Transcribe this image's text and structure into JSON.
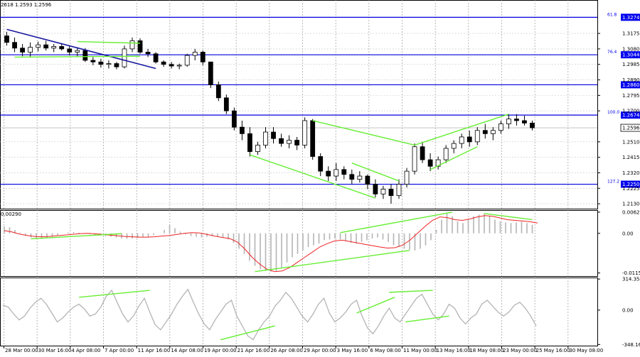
{
  "chart_data": {
    "type": "candlestick",
    "header_text": "2618 1.2593 1.2596",
    "price_ticks": [
      "1.3175",
      "1.3080",
      "1.2985",
      "1.2890",
      "1.2795",
      "1.2700",
      "1.2510",
      "1.2415",
      "1.2320",
      "1.2225",
      "1.2130"
    ],
    "price_range": [
      1.21,
      1.338
    ],
    "levels": [
      {
        "price": 1.3274,
        "label": "1.3274",
        "fib": "61.8"
      },
      {
        "price": 1.3044,
        "label": "1.3044",
        "fib": "76.4"
      },
      {
        "price": 1.286,
        "label": "1.2860",
        "fib": ""
      },
      {
        "price": 1.2674,
        "label": "1.2674",
        "fib": "100.0"
      },
      {
        "price": 1.225,
        "label": "1.2250",
        "fib": "127.2"
      }
    ],
    "current_price": {
      "price": 1.2596,
      "label": "1.2596"
    },
    "macd": {
      "label_left": "0.00290",
      "ticks": [
        "0.0062",
        "0.00",
        "-0.01158"
      ],
      "range": [
        -0.0125,
        0.0068
      ]
    },
    "cci": {
      "ticks": [
        "314.3545",
        "0.00",
        "-348.168"
      ],
      "range": [
        -360,
        330
      ]
    },
    "time_labels": [
      "28 Mar 00:00",
      "30 Mar 16:00",
      "4 Apr 08:00",
      "7 Apr 00:00",
      "11 Apr 16:00",
      "14 Apr 08:00",
      "19 Apr 00:00",
      "21 Apr 16:00",
      "26 Apr 08:00",
      "29 Apr 00:00",
      "3 May 16:00",
      "6 May 08:00",
      "11 May 00:00",
      "13 May 16:00",
      "18 May 08:00",
      "23 May 00:00",
      "25 May 16:00",
      "30 May 08:00"
    ],
    "candles": [
      [
        1.316,
        1.3185,
        1.31,
        1.312
      ],
      [
        1.312,
        1.315,
        1.306,
        1.3085
      ],
      [
        1.3085,
        1.311,
        1.3035,
        1.306
      ],
      [
        1.306,
        1.312,
        1.303,
        1.309
      ],
      [
        1.309,
        1.3125,
        1.3065,
        1.3105
      ],
      [
        1.3105,
        1.313,
        1.307,
        1.3085
      ],
      [
        1.3085,
        1.311,
        1.306,
        1.3095
      ],
      [
        1.3095,
        1.3115,
        1.307,
        1.308
      ],
      [
        1.308,
        1.31,
        1.304,
        1.306
      ],
      [
        1.306,
        1.309,
        1.303,
        1.307
      ],
      [
        1.307,
        1.3085,
        1.3,
        1.301
      ],
      [
        1.301,
        1.303,
        1.298,
        1.3
      ],
      [
        1.3,
        1.302,
        1.2965,
        1.2985
      ],
      [
        1.2985,
        1.301,
        1.296,
        1.299
      ],
      [
        1.299,
        1.3,
        1.2955,
        1.297
      ],
      [
        1.297,
        1.31,
        1.296,
        1.308
      ],
      [
        1.308,
        1.315,
        1.306,
        1.313
      ],
      [
        1.313,
        1.3145,
        1.305,
        1.306
      ],
      [
        1.306,
        1.308,
        1.303,
        1.305
      ],
      [
        1.305,
        1.306,
        1.299,
        1.3
      ],
      [
        1.3,
        1.301,
        1.297,
        1.2985
      ],
      [
        1.2985,
        1.3,
        1.296,
        1.2975
      ],
      [
        1.2975,
        1.299,
        1.2955,
        1.298
      ],
      [
        1.298,
        1.305,
        1.297,
        1.304
      ],
      [
        1.304,
        1.308,
        1.301,
        1.306
      ],
      [
        1.306,
        1.307,
        1.298,
        1.3
      ],
      [
        1.3,
        1.3,
        1.284,
        1.286
      ],
      [
        1.286,
        1.288,
        1.276,
        1.278
      ],
      [
        1.278,
        1.28,
        1.268,
        1.27
      ],
      [
        1.27,
        1.272,
        1.258,
        1.26
      ],
      [
        1.26,
        1.264,
        1.252,
        1.256
      ],
      [
        1.256,
        1.26,
        1.242,
        1.245
      ],
      [
        1.245,
        1.251,
        1.243,
        1.249
      ],
      [
        1.249,
        1.26,
        1.247,
        1.257
      ],
      [
        1.257,
        1.26,
        1.25,
        1.253
      ],
      [
        1.253,
        1.256,
        1.248,
        1.25
      ],
      [
        1.25,
        1.255,
        1.247,
        1.252
      ],
      [
        1.252,
        1.254,
        1.246,
        1.249
      ],
      [
        1.249,
        1.266,
        1.247,
        1.264
      ],
      [
        1.264,
        1.265,
        1.24,
        1.242
      ],
      [
        1.242,
        1.244,
        1.23,
        1.233
      ],
      [
        1.233,
        1.236,
        1.227,
        1.23
      ],
      [
        1.23,
        1.238,
        1.227,
        1.234
      ],
      [
        1.234,
        1.236,
        1.228,
        1.231
      ],
      [
        1.231,
        1.234,
        1.225,
        1.228
      ],
      [
        1.228,
        1.233,
        1.226,
        1.23
      ],
      [
        1.23,
        1.231,
        1.222,
        1.225
      ],
      [
        1.225,
        1.228,
        1.217,
        1.219
      ],
      [
        1.219,
        1.224,
        1.216,
        1.222
      ],
      [
        1.222,
        1.225,
        1.213,
        1.218
      ],
      [
        1.218,
        1.228,
        1.216,
        1.225
      ],
      [
        1.225,
        1.235,
        1.223,
        1.233
      ],
      [
        1.233,
        1.25,
        1.231,
        1.248
      ],
      [
        1.248,
        1.251,
        1.238,
        1.24
      ],
      [
        1.24,
        1.244,
        1.233,
        1.236
      ],
      [
        1.236,
        1.242,
        1.234,
        1.24
      ],
      [
        1.24,
        1.249,
        1.238,
        1.247
      ],
      [
        1.247,
        1.252,
        1.244,
        1.25
      ],
      [
        1.25,
        1.256,
        1.247,
        1.254
      ],
      [
        1.254,
        1.258,
        1.248,
        1.251
      ],
      [
        1.251,
        1.26,
        1.249,
        1.258
      ],
      [
        1.258,
        1.262,
        1.253,
        1.256
      ],
      [
        1.256,
        1.26,
        1.252,
        1.258
      ],
      [
        1.258,
        1.264,
        1.256,
        1.262
      ],
      [
        1.262,
        1.268,
        1.259,
        1.265
      ],
      [
        1.265,
        1.268,
        1.261,
        1.264
      ],
      [
        1.264,
        1.267,
        1.261,
        1.2625
      ],
      [
        1.2625,
        1.264,
        1.258,
        1.2596
      ]
    ],
    "macd_hist": [
      0.002,
      0.0018,
      0.001,
      0.0002,
      -0.0006,
      -0.0012,
      -0.0015,
      -0.0016,
      -0.0014,
      -0.001,
      -0.0005,
      0.0,
      0.0003,
      0.0004,
      0.0002,
      -0.0001,
      -0.0003,
      -0.0005,
      -0.0006,
      -0.0008,
      -0.001,
      -0.0012,
      -0.0015,
      -0.0016,
      -0.0015,
      -0.0014,
      -0.0012,
      -0.001,
      -0.0005,
      0.0,
      0.001,
      0.0025,
      0.0015,
      0.0005,
      -0.0003,
      -0.0008,
      -0.001,
      -0.0012,
      -0.001,
      -0.0008,
      -0.001,
      -0.0013,
      -0.0018,
      -0.0028,
      -0.0045,
      -0.006,
      -0.008,
      -0.0095,
      -0.0105,
      -0.011,
      -0.0112,
      -0.011,
      -0.01,
      -0.0085,
      -0.007,
      -0.006,
      -0.005,
      -0.004,
      -0.0035,
      -0.003,
      -0.002,
      -0.0018,
      -0.0015,
      -0.0018,
      -0.0022,
      -0.0028,
      -0.003,
      -0.0025,
      -0.002,
      -0.0015,
      -0.0012,
      -0.0018,
      -0.0025,
      -0.0035,
      -0.004,
      -0.0045,
      -0.0048,
      -0.005,
      -0.0045,
      -0.0035,
      -0.002,
      0.001,
      0.004,
      0.006,
      0.005,
      0.0035,
      0.003,
      0.004,
      0.005,
      0.0055,
      0.0058,
      0.005,
      0.004,
      0.0035,
      0.0032,
      0.003,
      0.0032,
      0.0034,
      0.003,
      0.0025
    ],
    "macd_signal": [
      0.0008,
      0.0004,
      -0.0002,
      -0.0006,
      -0.0009,
      -0.001,
      -0.0009,
      -0.0007,
      -0.0005,
      -0.0003,
      -0.0001,
      0.0,
      -0.0001,
      -0.0003,
      -0.0005,
      -0.0007,
      -0.0009,
      -0.001,
      -0.0011,
      -0.0011,
      -0.001,
      -0.0008,
      -0.0006,
      -0.0003,
      0.0,
      0.0002,
      0.0001,
      -0.0003,
      -0.0008,
      -0.0012,
      -0.0015,
      -0.0025,
      -0.0045,
      -0.007,
      -0.009,
      -0.0105,
      -0.0112,
      -0.011,
      -0.01,
      -0.0085,
      -0.007,
      -0.0055,
      -0.004,
      -0.003,
      -0.0022,
      -0.002,
      -0.0024,
      -0.0028,
      -0.0032,
      -0.0036,
      -0.004,
      -0.0043,
      -0.0042,
      -0.0035,
      -0.002,
      0.0,
      0.002,
      0.0038,
      0.0048,
      0.0046,
      0.004,
      0.0038,
      0.0042,
      0.0048,
      0.0052,
      0.005,
      0.0045,
      0.004,
      0.0038,
      0.0036,
      0.0034,
      0.003
    ],
    "cci_values": [
      50,
      30,
      -40,
      -100,
      -60,
      20,
      80,
      120,
      60,
      -30,
      -120,
      -80,
      -20,
      30,
      60,
      10,
      -60,
      -40,
      30,
      140,
      200,
      80,
      -40,
      -120,
      -60,
      40,
      120,
      -20,
      -150,
      -200,
      -120,
      -40,
      60,
      140,
      210,
      80,
      -40,
      -140,
      -200,
      -100,
      -20,
      60,
      100,
      -60,
      -160,
      -260,
      -300,
      -200,
      -120,
      -60,
      40,
      100,
      180,
      120,
      30,
      -60,
      -120,
      -40,
      60,
      120,
      -30,
      -120,
      -80,
      -20,
      60,
      100,
      -60,
      -180,
      -240,
      -160,
      -60,
      20,
      -80,
      -120,
      -40,
      40,
      120,
      160,
      60,
      -40,
      -100,
      -40,
      60,
      20,
      -80,
      -140,
      -80,
      -40,
      60,
      100,
      40,
      -20,
      -60,
      -20,
      50,
      80,
      20,
      -60,
      -160
    ]
  }
}
